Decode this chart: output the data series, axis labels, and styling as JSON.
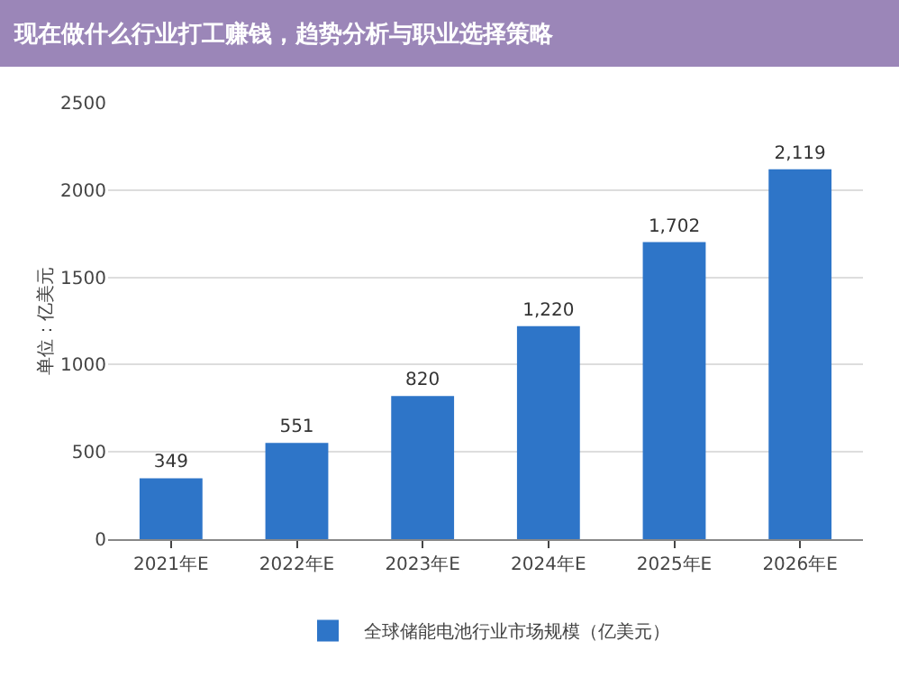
{
  "chart_data": {
    "type": "bar",
    "title": "现在做什么行业打工赚钱，趋势分析与职业选择策略",
    "ylabel": "单位：亿美元",
    "categories": [
      "2021年E",
      "2022年E",
      "2023年E",
      "2024年E",
      "2025年E",
      "2026年E"
    ],
    "series": [
      {
        "name": "全球储能电池行业市场规模（亿美元）",
        "color": "#2e75c8",
        "values": [
          349,
          551,
          820,
          1220,
          1702,
          2119
        ],
        "value_labels": [
          "349",
          "551",
          "820",
          "1,220",
          "1,702",
          "2,119"
        ]
      }
    ],
    "ylim": [
      0,
      2500
    ],
    "yticks": [
      0,
      500,
      1000,
      1500,
      2000,
      2500
    ],
    "grid": "y",
    "legend": "bottom"
  }
}
